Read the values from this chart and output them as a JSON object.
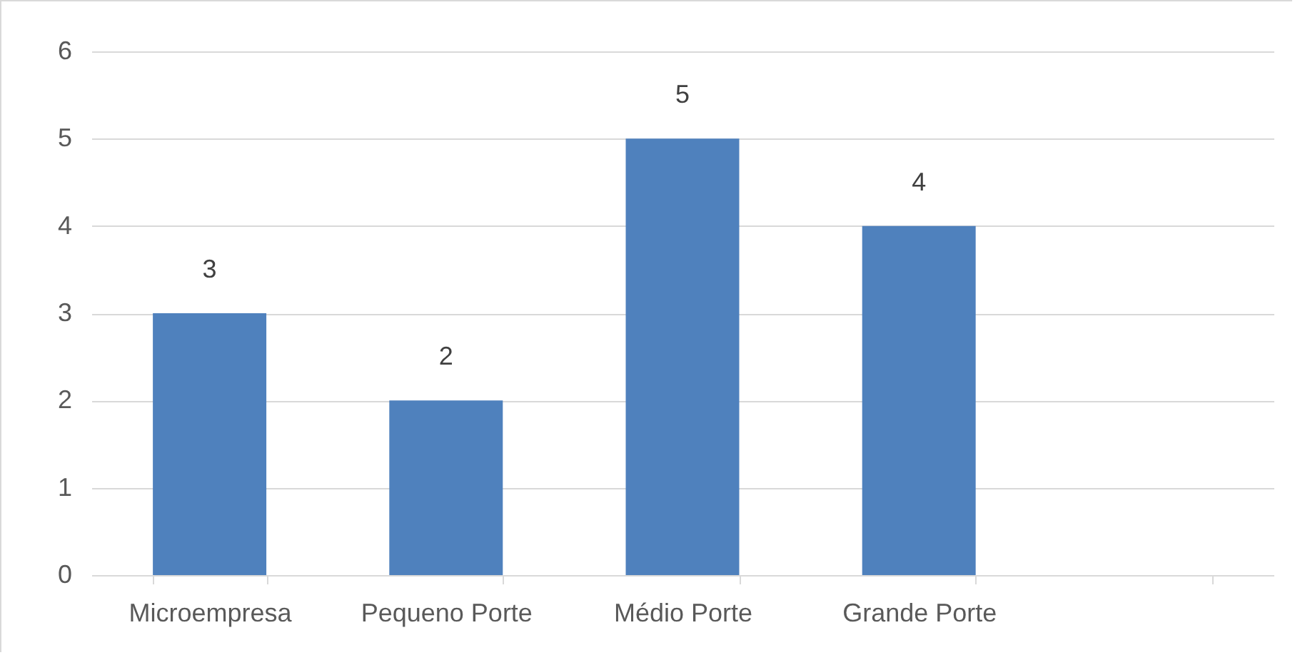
{
  "chart_data": {
    "type": "bar",
    "categories": [
      "Microempresa",
      "Pequeno Porte",
      "Médio Porte",
      "Grande Porte",
      null
    ],
    "values": [
      3,
      2,
      5,
      4,
      null
    ],
    "color": "#4f81bd",
    "ylim": [
      0,
      6
    ],
    "yticks": [
      0,
      1,
      2,
      3,
      4,
      5,
      6
    ],
    "grid": "y",
    "data_labels": true
  }
}
